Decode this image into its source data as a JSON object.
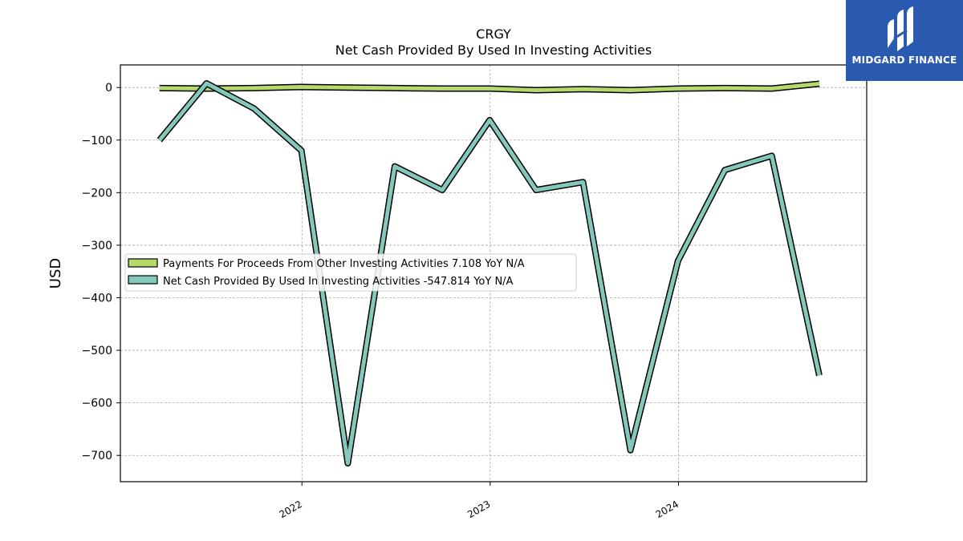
{
  "chart_data": {
    "type": "line",
    "title": "CRGY",
    "subtitle": "Net Cash Provided By Used In Investing Activities",
    "ylabel": "USD",
    "xlabel": "",
    "ylim": [
      -750,
      43
    ],
    "xlim": [
      "2021-01-14",
      "2024-12-31"
    ],
    "yticks": [
      0,
      -100,
      -200,
      -300,
      -400,
      -500,
      -600,
      -700
    ],
    "ytick_labels": [
      "0",
      "−100",
      "−200",
      "−300",
      "−400",
      "−500",
      "−600",
      "−700"
    ],
    "xticks": [
      "2022-01-01",
      "2023-01-01",
      "2024-01-01"
    ],
    "xtick_labels": [
      "2022",
      "2023",
      "2024"
    ],
    "grid": true,
    "legend_position": "center-left",
    "series": [
      {
        "name": "Payments For Proceeds From Other Investing Activities  7.108 YoY N/A",
        "color": "#b5d96a",
        "x": [
          "2021-03-31",
          "2021-06-30",
          "2021-09-30",
          "2021-12-31",
          "2022-03-31",
          "2022-06-30",
          "2022-09-30",
          "2022-12-31",
          "2023-03-31",
          "2023-06-30",
          "2023-09-30",
          "2023-12-31",
          "2024-03-31",
          "2024-06-30",
          "2024-09-30"
        ],
        "values": [
          -1,
          -2,
          -1,
          1,
          0,
          -1,
          -2,
          -2,
          -5,
          -3,
          -5,
          -2,
          -1,
          -2,
          7.108
        ]
      },
      {
        "name": "Net Cash Provided By Used In Investing Activities  -547.814 YoY N/A",
        "color": "#84c8bc",
        "x": [
          "2021-03-31",
          "2021-06-30",
          "2021-09-30",
          "2021-12-31",
          "2022-03-31",
          "2022-06-30",
          "2022-09-30",
          "2022-12-31",
          "2023-03-31",
          "2023-06-30",
          "2023-09-30",
          "2023-12-31",
          "2024-03-31",
          "2024-06-30",
          "2024-09-30"
        ],
        "values": [
          -100,
          8,
          -40,
          -120,
          -715,
          -150,
          -195,
          -62,
          -195,
          -180,
          -690,
          -330,
          -157,
          -130,
          -547.814
        ]
      }
    ]
  },
  "logo": {
    "text": "MIDGARD FINANCE",
    "background": "#2b5bb0"
  }
}
